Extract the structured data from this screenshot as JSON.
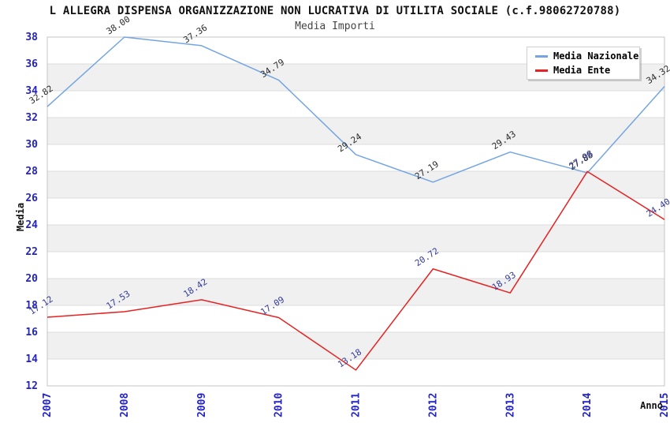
{
  "chart_data": {
    "type": "line",
    "title": "L ALLEGRA DISPENSA ORGANIZZAZIONE NON LUCRATIVA DI UTILITA SOCIALE (c.f.98062720788)",
    "subtitle": "Media Importi",
    "xlabel": "Anno",
    "ylabel": "Media",
    "x": [
      "2007",
      "2008",
      "2009",
      "2010",
      "2011",
      "2012",
      "2013",
      "2014",
      "2015"
    ],
    "ylim": [
      12,
      38
    ],
    "ytick_step": 2,
    "yticks": [
      38,
      36,
      34,
      32,
      30,
      28,
      26,
      24,
      22,
      20,
      18,
      16,
      14,
      12
    ],
    "grid": "horizontal-bands",
    "legend_position": "top-right",
    "series": [
      {
        "name": "Media Nazionale",
        "color": "#74a5e3",
        "label_color": "#2a2a2a",
        "values": [
          32.82,
          38.0,
          37.36,
          34.79,
          29.24,
          27.19,
          29.43,
          27.88,
          34.32
        ],
        "labels": [
          "32.82",
          "38.00",
          "37.36",
          "34.79",
          "29.24",
          "27.19",
          "29.43",
          "27.88",
          "34.32"
        ]
      },
      {
        "name": "Media Ente",
        "color": "#e62222",
        "label_color": "#333a99",
        "values": [
          17.12,
          17.53,
          18.42,
          17.09,
          13.18,
          20.72,
          18.93,
          27.98,
          24.4
        ],
        "labels": [
          "17.12",
          "17.53",
          "18.42",
          "17.09",
          "13.18",
          "20.72",
          "18.93",
          "27.98",
          "24.40"
        ]
      }
    ],
    "colors": {
      "tick_label": "#2323c8",
      "band": "#f0f0f0",
      "grid_line": "#dcdcdc",
      "plot_border": "#c4c4c4",
      "title": "#111111",
      "subtitle": "#444444"
    }
  }
}
